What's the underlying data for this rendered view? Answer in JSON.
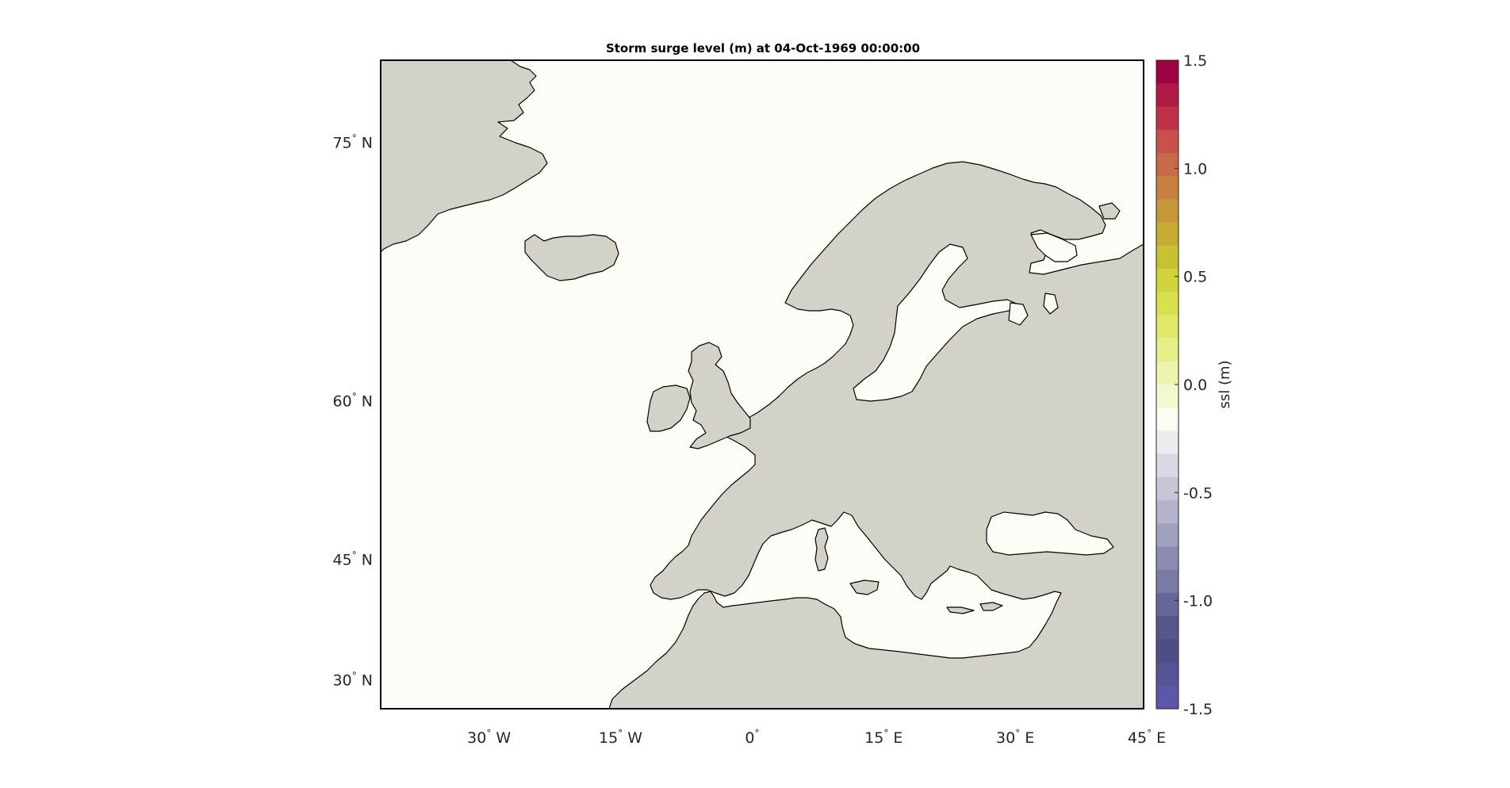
{
  "title": "Storm surge level (m) at 04-Oct-1969 00:00:00",
  "map": {
    "lon_range": [
      -42,
      45
    ],
    "lat_range": [
      26,
      78
    ],
    "ocean_color": "#fdfdf8",
    "land_color": "#d4d2c8",
    "coast_color": "#000000",
    "lat_ticks": [
      {
        "value": 75,
        "num": "75",
        "hemi": "N"
      },
      {
        "value": 60,
        "num": "60",
        "hemi": "N"
      },
      {
        "value": 45,
        "num": "45",
        "hemi": "N"
      },
      {
        "value": 30,
        "num": "30",
        "hemi": "N"
      }
    ],
    "lon_ticks": [
      {
        "value": -30,
        "num": "30",
        "hemi": "W"
      },
      {
        "value": -15,
        "num": "15",
        "hemi": "W"
      },
      {
        "value": 0,
        "num": "0",
        "hemi": ""
      },
      {
        "value": 15,
        "num": "15",
        "hemi": "E"
      },
      {
        "value": 30,
        "num": "30",
        "hemi": "E"
      },
      {
        "value": 45,
        "num": "45",
        "hemi": "E"
      }
    ],
    "degree_symbol": "°"
  },
  "colorbar": {
    "label": "ssl (m)",
    "range": [
      -1.5,
      1.5
    ],
    "ticks": [
      "1.5",
      "1.0",
      "0.5",
      "0.0",
      "-0.5",
      "-1.0",
      "-1.5"
    ],
    "colors_top_to_bottom": [
      "#9e0142",
      "#b01a45",
      "#bf3147",
      "#c5514a",
      "#c86a47",
      "#c88040",
      "#c6963a",
      "#c4ab33",
      "#c6c231",
      "#cfd43a",
      "#d8e04c",
      "#e0e86a",
      "#e6ee8a",
      "#eef3ad",
      "#f5f7d0",
      "#fbfbef",
      "#ebebf0",
      "#d9d9e3",
      "#c6c6d7",
      "#b3b3cb",
      "#a0a0bf",
      "#8c8cb3",
      "#7a7aa6",
      "#676799",
      "#56568b",
      "#4e4e84",
      "#555596",
      "#5c57a8"
    ]
  }
}
